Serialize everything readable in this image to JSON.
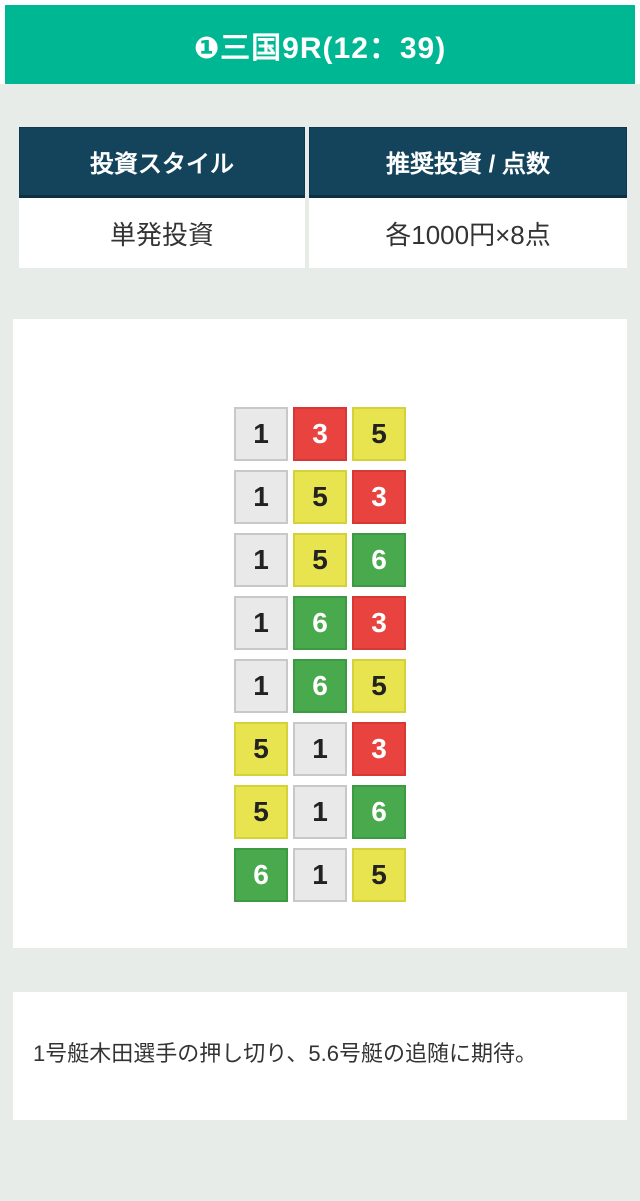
{
  "header": {
    "title": "❶三国9R(12：39)"
  },
  "invest_table": {
    "columns": [
      {
        "header": "投資スタイル",
        "value": "単発投資"
      },
      {
        "header": "推奨投資 / 点数",
        "value": "各1000円×8点"
      }
    ]
  },
  "predictions": {
    "rows": [
      [
        "1",
        "3",
        "5"
      ],
      [
        "1",
        "5",
        "3"
      ],
      [
        "1",
        "5",
        "6"
      ],
      [
        "1",
        "6",
        "3"
      ],
      [
        "1",
        "6",
        "5"
      ],
      [
        "5",
        "1",
        "3"
      ],
      [
        "5",
        "1",
        "6"
      ],
      [
        "6",
        "1",
        "5"
      ]
    ]
  },
  "tile_styles": {
    "1": {
      "bg": "#e9e9e9",
      "border": "#c8c8c8",
      "text": "#222222"
    },
    "3": {
      "bg": "#e94340",
      "border": "#d63834",
      "text": "#ffffff"
    },
    "5": {
      "bg": "#e8e44f",
      "border": "#d5d13b",
      "text": "#222222"
    },
    "6": {
      "bg": "#49a94d",
      "border": "#3d9a42",
      "text": "#ffffff"
    }
  },
  "comment": {
    "text": "1号艇木田選手の押し切り、5.6号艇の追随に期待。"
  },
  "colors": {
    "header_bg": "#00b794",
    "section_bg": "#e8ece9",
    "table_header_bg": "#14445c"
  }
}
